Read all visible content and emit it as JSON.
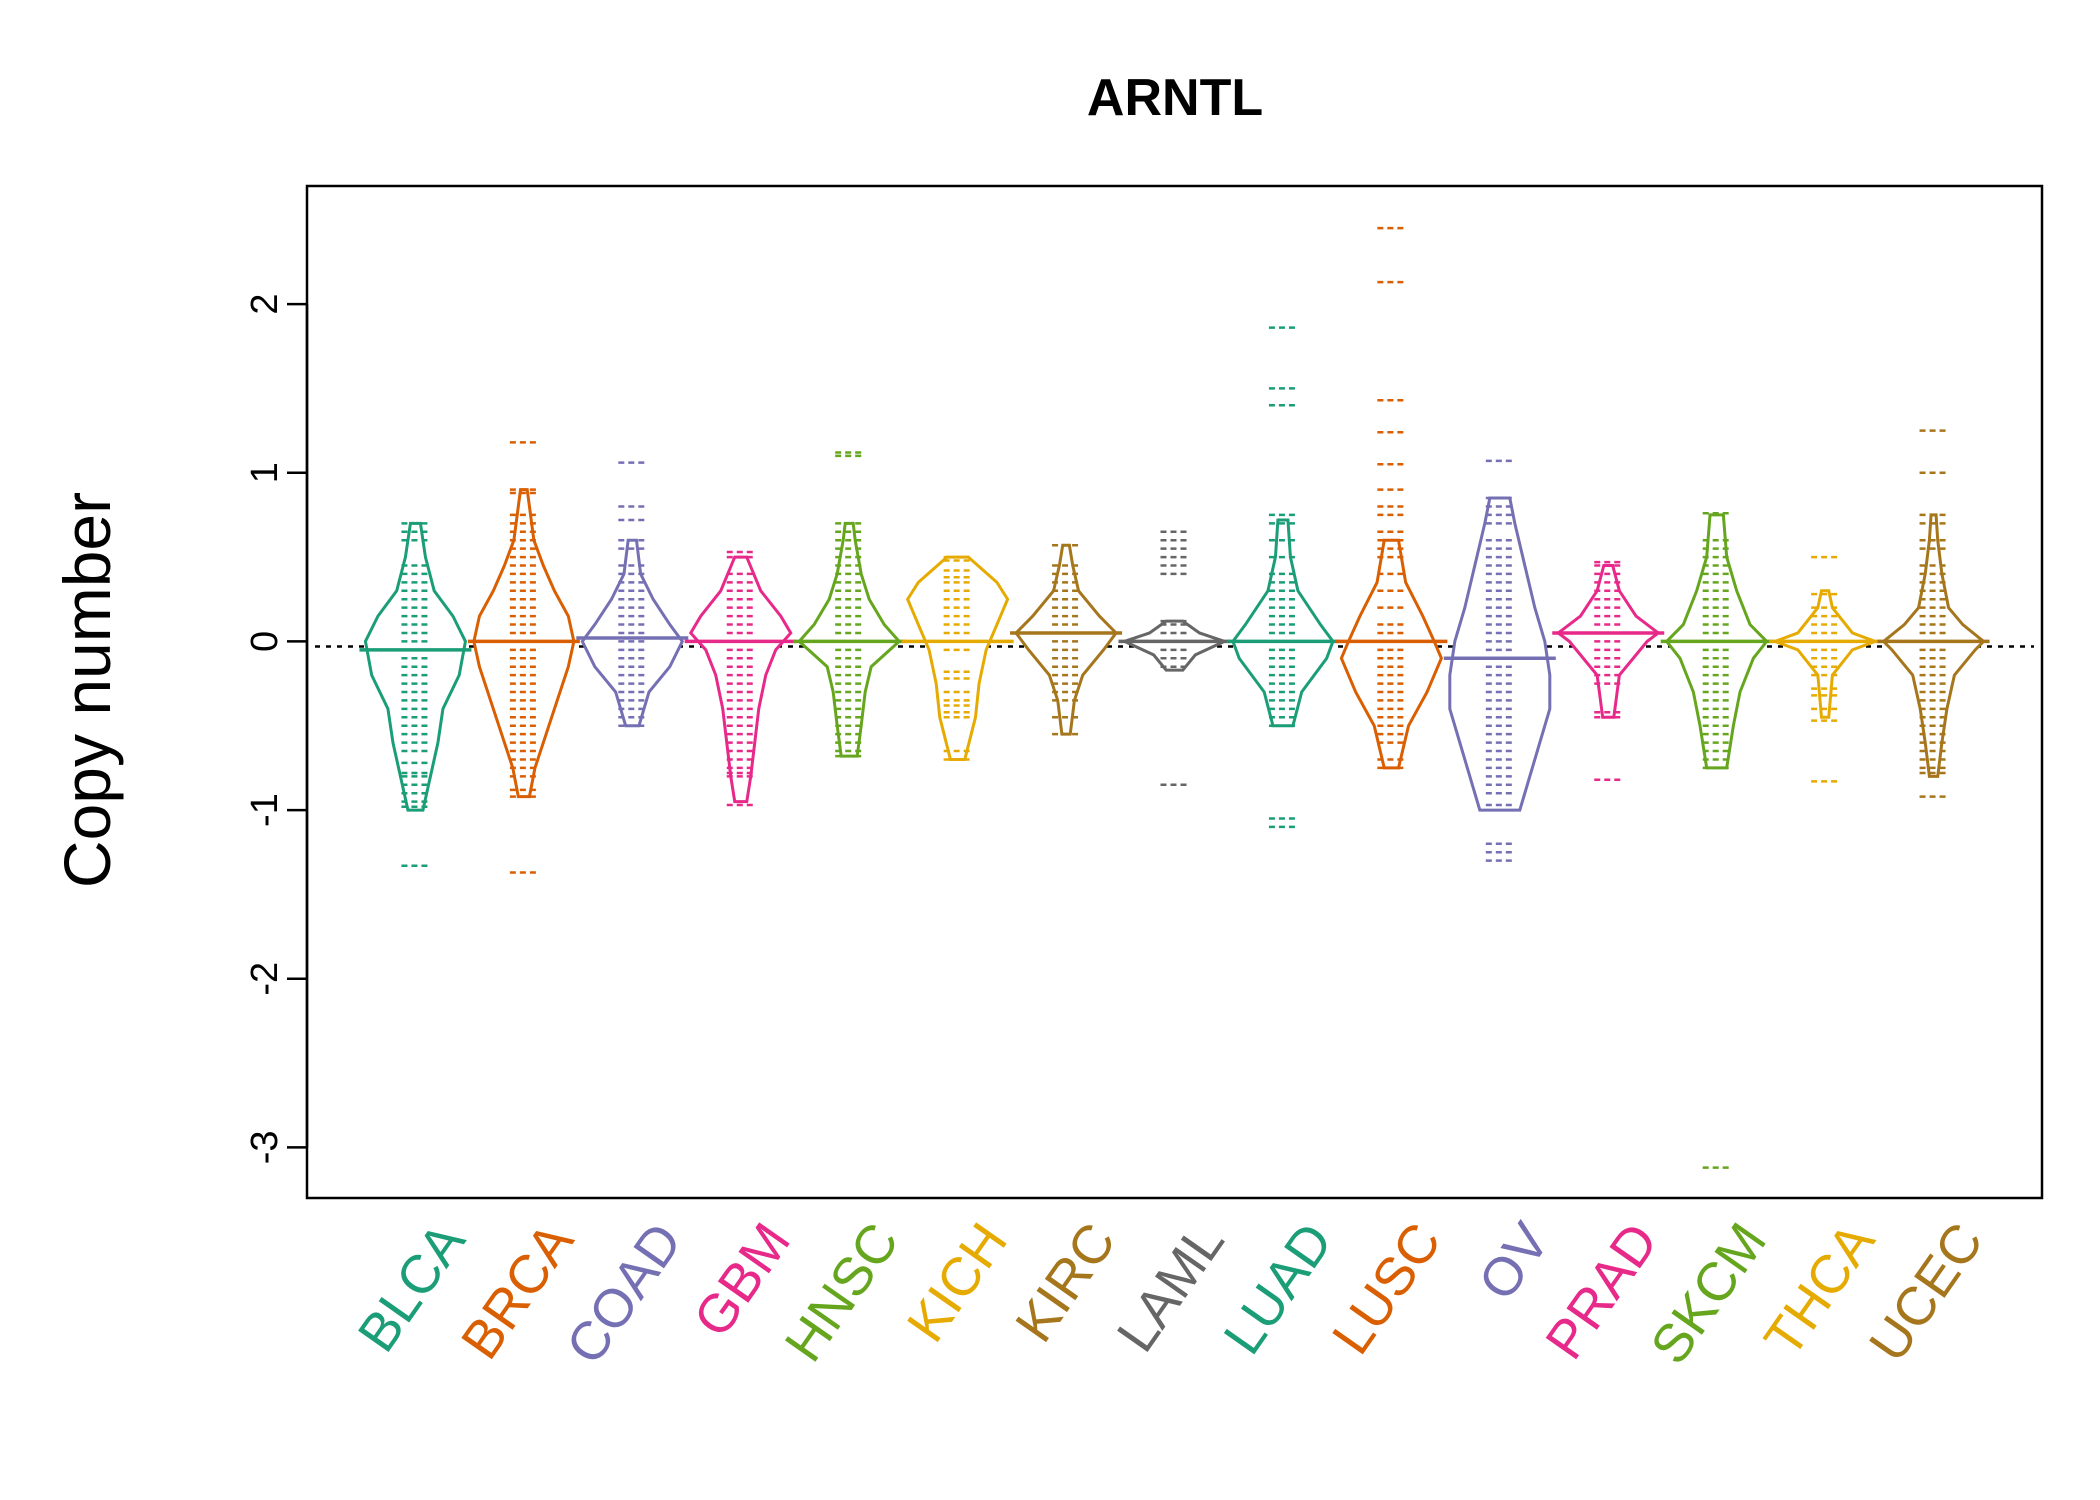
{
  "chart_data": {
    "type": "beanplot",
    "title": "ARNTL",
    "xlabel": "",
    "ylabel": "Copy number",
    "ylim": [
      -3.3,
      2.7
    ],
    "yticks": [
      -3,
      -2,
      -1,
      0,
      1,
      2
    ],
    "reference_line": -0.03,
    "grid": false,
    "legend": "none",
    "categories": [
      "BLCA",
      "BRCA",
      "COAD",
      "GBM",
      "HNSC",
      "KICH",
      "KIRC",
      "LAML",
      "LUAD",
      "LUSC",
      "OV",
      "PRAD",
      "SKCM",
      "THCA",
      "UCEC"
    ],
    "colors": [
      "#1B9E77",
      "#D95F02",
      "#7570B3",
      "#E7298A",
      "#66A61E",
      "#E6AB02",
      "#A6761D",
      "#666666",
      "#1B9E77",
      "#D95F02",
      "#7570B3",
      "#E7298A",
      "#66A61E",
      "#E6AB02",
      "#A6761D"
    ],
    "series": [
      {
        "name": "BLCA",
        "mean": -0.05,
        "density": [
          [
            -1.0,
            0.06
          ],
          [
            -0.8,
            0.12
          ],
          [
            -0.6,
            0.18
          ],
          [
            -0.4,
            0.22
          ],
          [
            -0.2,
            0.35
          ],
          [
            0.0,
            0.4
          ],
          [
            0.15,
            0.3
          ],
          [
            0.3,
            0.15
          ],
          [
            0.5,
            0.08
          ],
          [
            0.7,
            0.04
          ]
        ],
        "points": [
          -1.33,
          -0.98,
          -0.95,
          -0.9,
          -0.85,
          -0.8,
          -0.78,
          -0.72,
          -0.65,
          -0.6,
          -0.55,
          -0.5,
          -0.45,
          -0.4,
          -0.35,
          -0.3,
          -0.25,
          -0.2,
          -0.15,
          -0.1,
          -0.05,
          0.0,
          0.05,
          0.1,
          0.15,
          0.2,
          0.25,
          0.3,
          0.35,
          0.4,
          0.45,
          0.6,
          0.65,
          0.7
        ]
      },
      {
        "name": "BRCA",
        "mean": 0.0,
        "density": [
          [
            -0.92,
            0.1
          ],
          [
            -0.75,
            0.2
          ],
          [
            -0.55,
            0.4
          ],
          [
            -0.35,
            0.6
          ],
          [
            -0.15,
            0.8
          ],
          [
            0.0,
            0.9
          ],
          [
            0.15,
            0.8
          ],
          [
            0.3,
            0.55
          ],
          [
            0.45,
            0.35
          ],
          [
            0.6,
            0.18
          ],
          [
            0.9,
            0.06
          ]
        ],
        "points": [
          -1.37,
          -0.92,
          -0.88,
          -0.8,
          -0.75,
          -0.7,
          -0.65,
          -0.6,
          -0.55,
          -0.5,
          -0.45,
          -0.4,
          -0.35,
          -0.3,
          -0.25,
          -0.2,
          -0.15,
          -0.1,
          -0.05,
          0.0,
          0.05,
          0.1,
          0.15,
          0.2,
          0.25,
          0.3,
          0.35,
          0.4,
          0.45,
          0.5,
          0.55,
          0.6,
          0.65,
          0.7,
          0.75,
          0.88,
          0.9,
          1.18
        ]
      },
      {
        "name": "COAD",
        "mean": 0.02,
        "density": [
          [
            -0.5,
            0.08
          ],
          [
            -0.3,
            0.2
          ],
          [
            -0.15,
            0.45
          ],
          [
            0.0,
            0.6
          ],
          [
            0.1,
            0.45
          ],
          [
            0.25,
            0.25
          ],
          [
            0.4,
            0.1
          ],
          [
            0.6,
            0.05
          ]
        ],
        "points": [
          -0.5,
          -0.45,
          -0.4,
          -0.35,
          -0.3,
          -0.25,
          -0.2,
          -0.15,
          -0.1,
          -0.05,
          0.0,
          0.05,
          0.1,
          0.15,
          0.2,
          0.25,
          0.3,
          0.35,
          0.4,
          0.45,
          0.55,
          0.6,
          0.72,
          0.8,
          1.06
        ]
      },
      {
        "name": "GBM",
        "mean": 0.0,
        "density": [
          [
            -0.95,
            0.06
          ],
          [
            -0.8,
            0.1
          ],
          [
            -0.6,
            0.14
          ],
          [
            -0.4,
            0.18
          ],
          [
            -0.2,
            0.25
          ],
          [
            -0.05,
            0.35
          ],
          [
            0.05,
            0.5
          ],
          [
            0.15,
            0.4
          ],
          [
            0.3,
            0.2
          ],
          [
            0.5,
            0.06
          ]
        ],
        "points": [
          -0.97,
          -0.8,
          -0.78,
          -0.75,
          -0.7,
          -0.65,
          -0.6,
          -0.55,
          -0.5,
          -0.45,
          -0.4,
          -0.35,
          -0.3,
          -0.25,
          -0.2,
          -0.15,
          -0.1,
          -0.05,
          0.0,
          0.05,
          0.1,
          0.15,
          0.2,
          0.25,
          0.3,
          0.35,
          0.4,
          0.5,
          0.53
        ]
      },
      {
        "name": "HNSC",
        "mean": 0.0,
        "density": [
          [
            -0.68,
            0.08
          ],
          [
            -0.5,
            0.12
          ],
          [
            -0.3,
            0.16
          ],
          [
            -0.15,
            0.22
          ],
          [
            0.0,
            0.5
          ],
          [
            0.1,
            0.35
          ],
          [
            0.25,
            0.2
          ],
          [
            0.4,
            0.12
          ],
          [
            0.6,
            0.06
          ],
          [
            0.7,
            0.04
          ]
        ],
        "points": [
          -0.68,
          -0.65,
          -0.6,
          -0.55,
          -0.5,
          -0.45,
          -0.4,
          -0.35,
          -0.3,
          -0.25,
          -0.2,
          -0.15,
          -0.1,
          -0.05,
          0.0,
          0.05,
          0.1,
          0.15,
          0.2,
          0.25,
          0.3,
          0.35,
          0.4,
          0.45,
          0.5,
          0.55,
          0.6,
          0.65,
          0.7,
          1.1,
          1.12
        ]
      },
      {
        "name": "KICH",
        "mean": 0.0,
        "density": [
          [
            -0.7,
            0.04
          ],
          [
            -0.45,
            0.1
          ],
          [
            -0.25,
            0.12
          ],
          [
            -0.05,
            0.16
          ],
          [
            0.1,
            0.22
          ],
          [
            0.25,
            0.28
          ],
          [
            0.35,
            0.22
          ],
          [
            0.5,
            0.06
          ]
        ],
        "points": [
          -0.7,
          -0.65,
          -0.45,
          -0.42,
          -0.38,
          -0.35,
          -0.3,
          -0.22,
          -0.18,
          -0.05,
          0.0,
          0.05,
          0.1,
          0.15,
          0.2,
          0.25,
          0.3,
          0.35,
          0.38,
          0.42,
          0.48,
          0.5
        ]
      },
      {
        "name": "KIRC",
        "mean": 0.05,
        "density": [
          [
            -0.55,
            0.05
          ],
          [
            -0.35,
            0.1
          ],
          [
            -0.2,
            0.2
          ],
          [
            -0.05,
            0.45
          ],
          [
            0.05,
            0.6
          ],
          [
            0.15,
            0.4
          ],
          [
            0.3,
            0.15
          ],
          [
            0.45,
            0.08
          ],
          [
            0.57,
            0.04
          ]
        ],
        "points": [
          -0.55,
          -0.45,
          -0.35,
          -0.3,
          -0.25,
          -0.2,
          -0.15,
          -0.1,
          -0.05,
          0.0,
          0.05,
          0.1,
          0.15,
          0.2,
          0.25,
          0.3,
          0.35,
          0.4,
          0.45,
          0.57
        ]
      },
      {
        "name": "LAML",
        "mean": 0.0,
        "density": [
          [
            -0.17,
            0.1
          ],
          [
            -0.08,
            0.25
          ],
          [
            0.0,
            0.6
          ],
          [
            0.05,
            0.3
          ],
          [
            0.12,
            0.1
          ]
        ],
        "points": [
          -0.85,
          -0.15,
          -0.1,
          -0.05,
          0.0,
          0.05,
          0.1,
          0.12,
          0.4,
          0.45,
          0.5,
          0.55,
          0.6,
          0.65
        ]
      },
      {
        "name": "LUAD",
        "mean": 0.0,
        "density": [
          [
            -0.5,
            0.08
          ],
          [
            -0.3,
            0.15
          ],
          [
            -0.1,
            0.35
          ],
          [
            0.0,
            0.4
          ],
          [
            0.1,
            0.3
          ],
          [
            0.3,
            0.12
          ],
          [
            0.5,
            0.06
          ],
          [
            0.72,
            0.04
          ]
        ],
        "points": [
          -1.1,
          -1.05,
          -0.5,
          -0.45,
          -0.4,
          -0.35,
          -0.3,
          -0.25,
          -0.2,
          -0.15,
          -0.1,
          -0.05,
          0.0,
          0.05,
          0.1,
          0.15,
          0.2,
          0.25,
          0.3,
          0.35,
          0.4,
          0.5,
          0.6,
          0.7,
          0.75,
          1.4,
          1.5,
          1.86
        ]
      },
      {
        "name": "LUSC",
        "mean": 0.0,
        "density": [
          [
            -0.75,
            0.05
          ],
          [
            -0.5,
            0.12
          ],
          [
            -0.3,
            0.25
          ],
          [
            -0.1,
            0.35
          ],
          [
            0.0,
            0.3
          ],
          [
            0.15,
            0.22
          ],
          [
            0.35,
            0.1
          ],
          [
            0.6,
            0.05
          ]
        ],
        "points": [
          -0.75,
          -0.7,
          -0.6,
          -0.55,
          -0.5,
          -0.45,
          -0.4,
          -0.35,
          -0.3,
          -0.25,
          -0.2,
          -0.15,
          -0.1,
          -0.05,
          0.0,
          0.05,
          0.1,
          0.2,
          0.3,
          0.4,
          0.5,
          0.55,
          0.6,
          0.65,
          0.75,
          0.8,
          0.9,
          1.05,
          1.24,
          1.43,
          2.13,
          2.45
        ]
      },
      {
        "name": "OV",
        "mean": -0.1,
        "density": [
          [
            -1.0,
            0.08
          ],
          [
            -0.8,
            0.12
          ],
          [
            -0.6,
            0.16
          ],
          [
            -0.4,
            0.2
          ],
          [
            -0.2,
            0.2
          ],
          [
            0.0,
            0.18
          ],
          [
            0.2,
            0.14
          ],
          [
            0.45,
            0.1
          ],
          [
            0.7,
            0.06
          ],
          [
            0.85,
            0.04
          ]
        ],
        "points": [
          -1.3,
          -1.25,
          -1.2,
          -0.97,
          -0.9,
          -0.85,
          -0.8,
          -0.75,
          -0.7,
          -0.65,
          -0.6,
          -0.55,
          -0.5,
          -0.45,
          -0.4,
          -0.35,
          -0.3,
          -0.25,
          -0.2,
          -0.15,
          -0.1,
          -0.05,
          0.0,
          0.05,
          0.1,
          0.15,
          0.2,
          0.25,
          0.3,
          0.35,
          0.4,
          0.45,
          0.5,
          0.55,
          0.6,
          0.7,
          0.75,
          0.8,
          0.85,
          1.07
        ]
      },
      {
        "name": "PRAD",
        "mean": 0.05,
        "density": [
          [
            -0.45,
            0.05
          ],
          [
            -0.2,
            0.1
          ],
          [
            0.0,
            0.35
          ],
          [
            0.05,
            0.45
          ],
          [
            0.15,
            0.25
          ],
          [
            0.3,
            0.1
          ],
          [
            0.45,
            0.04
          ]
        ],
        "points": [
          -0.82,
          -0.45,
          -0.42,
          -0.25,
          -0.2,
          -0.15,
          -0.1,
          -0.05,
          0.0,
          0.05,
          0.1,
          0.15,
          0.2,
          0.25,
          0.3,
          0.35,
          0.4,
          0.45,
          0.47
        ]
      },
      {
        "name": "SKCM",
        "mean": 0.0,
        "density": [
          [
            -0.75,
            0.06
          ],
          [
            -0.5,
            0.1
          ],
          [
            -0.3,
            0.14
          ],
          [
            -0.1,
            0.22
          ],
          [
            0.0,
            0.3
          ],
          [
            0.1,
            0.2
          ],
          [
            0.3,
            0.12
          ],
          [
            0.5,
            0.06
          ],
          [
            0.75,
            0.04
          ]
        ],
        "points": [
          -3.12,
          -0.75,
          -0.7,
          -0.65,
          -0.6,
          -0.55,
          -0.5,
          -0.45,
          -0.4,
          -0.35,
          -0.3,
          -0.25,
          -0.2,
          -0.15,
          -0.1,
          -0.05,
          0.0,
          0.05,
          0.1,
          0.15,
          0.2,
          0.25,
          0.3,
          0.35,
          0.4,
          0.45,
          0.5,
          0.55,
          0.6,
          0.76
        ]
      },
      {
        "name": "THCA",
        "mean": 0.0,
        "density": [
          [
            -0.45,
            0.04
          ],
          [
            -0.2,
            0.08
          ],
          [
            -0.05,
            0.3
          ],
          [
            0.0,
            0.55
          ],
          [
            0.05,
            0.3
          ],
          [
            0.2,
            0.08
          ],
          [
            0.3,
            0.04
          ]
        ],
        "points": [
          -0.83,
          -0.47,
          -0.4,
          -0.32,
          -0.28,
          -0.2,
          -0.15,
          -0.1,
          -0.05,
          0.0,
          0.05,
          0.1,
          0.15,
          0.2,
          0.28,
          0.5
        ]
      },
      {
        "name": "UCEC",
        "mean": 0.0,
        "density": [
          [
            -0.8,
            0.05
          ],
          [
            -0.6,
            0.1
          ],
          [
            -0.4,
            0.16
          ],
          [
            -0.2,
            0.25
          ],
          [
            -0.05,
            0.5
          ],
          [
            0.0,
            0.6
          ],
          [
            0.1,
            0.35
          ],
          [
            0.2,
            0.18
          ],
          [
            0.4,
            0.1
          ],
          [
            0.6,
            0.05
          ],
          [
            0.75,
            0.03
          ]
        ],
        "points": [
          -0.92,
          -0.78,
          -0.75,
          -0.7,
          -0.65,
          -0.6,
          -0.55,
          -0.5,
          -0.45,
          -0.4,
          -0.35,
          -0.3,
          -0.25,
          -0.2,
          -0.15,
          -0.1,
          -0.05,
          0.0,
          0.05,
          0.1,
          0.15,
          0.2,
          0.25,
          0.3,
          0.35,
          0.4,
          0.45,
          0.55,
          0.6,
          0.7,
          0.75,
          1.0,
          1.25
        ]
      }
    ]
  }
}
